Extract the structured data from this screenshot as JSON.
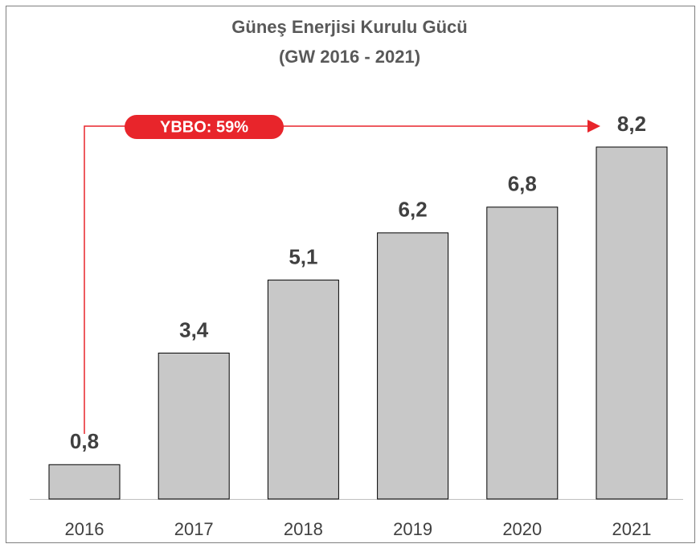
{
  "chart_data": {
    "type": "bar",
    "title": "Güneş Enerjisi Kurulu Gücü",
    "subtitle": "(GW 2016 - 2021)",
    "categories": [
      "2016",
      "2017",
      "2018",
      "2019",
      "2020",
      "2021"
    ],
    "values": [
      0.8,
      3.4,
      5.1,
      6.2,
      6.8,
      8.2
    ],
    "value_labels": [
      "0,8",
      "3,4",
      "5,1",
      "6,2",
      "6,8",
      "8,2"
    ],
    "color": "#c8c8c8",
    "annotation": "YBBO: 59%"
  }
}
